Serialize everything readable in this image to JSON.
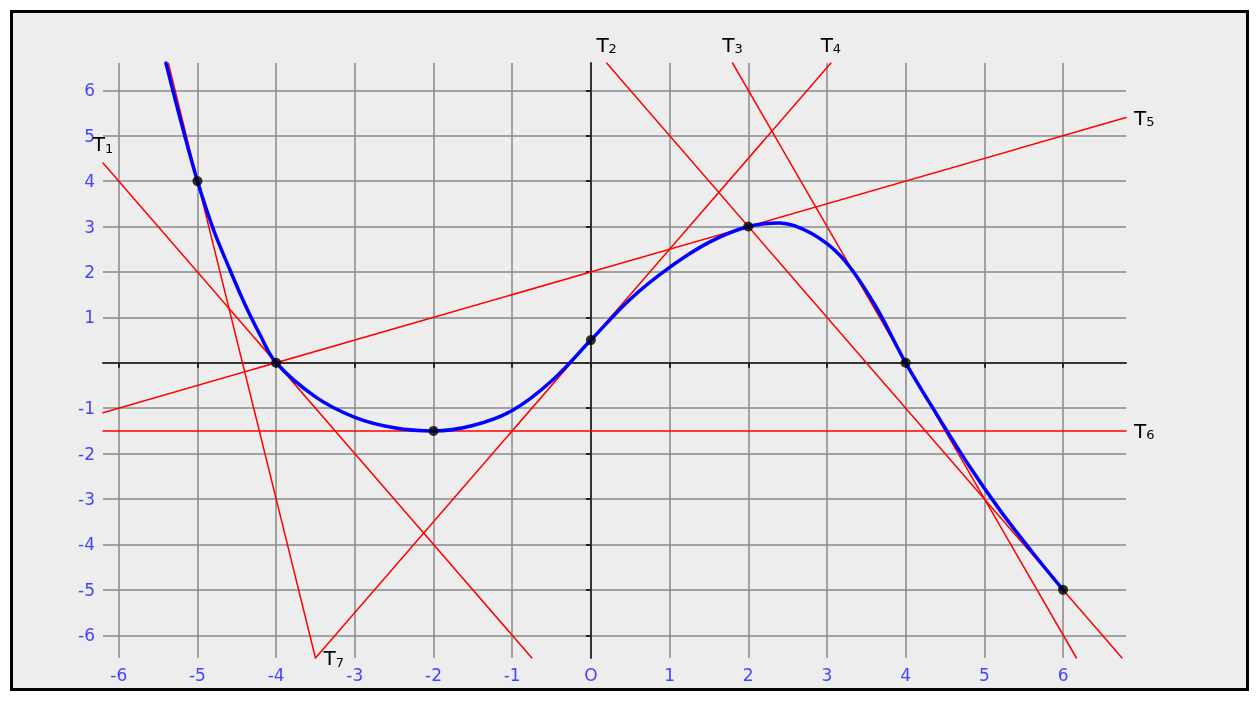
{
  "chart_data": {
    "type": "line",
    "xlim": [
      -6.2,
      6.8
    ],
    "ylim": [
      -6.5,
      6.6
    ],
    "xticks": [
      -6,
      -5,
      -4,
      -3,
      -2,
      -1,
      {
        "value": 0,
        "label": "O"
      },
      1,
      2,
      3,
      4,
      5,
      6
    ],
    "yticks": [
      -6,
      -5,
      -4,
      -3,
      -2,
      -1,
      1,
      2,
      3,
      4,
      5,
      6
    ],
    "grid": true,
    "legend": false,
    "marker": "none",
    "line_style": "solid",
    "series": [
      {
        "color": "#0000ff",
        "x": [
          -5.4,
          -5.2,
          -5,
          -4.8,
          -4.6,
          -4.4,
          -4.2,
          -4,
          -3.5,
          -3,
          -2.5,
          -2,
          -1.5,
          -1,
          -0.5,
          0,
          0.5,
          1,
          1.5,
          2,
          2.4,
          2.8,
          3.2,
          3.6,
          4,
          4.4,
          4.8,
          5.2,
          5.6,
          6
        ],
        "values": [
          6.6,
          5.25,
          4,
          2.95,
          2.1,
          1.3,
          0.6,
          0,
          -0.75,
          -1.2,
          -1.43,
          -1.5,
          -1.38,
          -1.05,
          -0.4,
          0.5,
          1.4,
          2.1,
          2.65,
          3,
          3.08,
          2.85,
          2.3,
          1.3,
          0,
          -1.15,
          -2.25,
          -3.25,
          -4.15,
          -5
        ]
      },
      {
        "type": "scatter",
        "marker": "circle",
        "color": "#000000",
        "x": [
          -5,
          -4,
          -2,
          0,
          2,
          4,
          6
        ],
        "values": [
          4,
          0,
          -1.5,
          0.5,
          3,
          0,
          -5
        ]
      },
      {
        "name": "T$_{1}$",
        "color": "#ff0000",
        "x": [
          -0.75,
          -6.2
        ],
        "values": [
          -6.5,
          4.4
        ]
      },
      {
        "name": "T$_{2}$",
        "color": "#ff0000",
        "x": [
          6.75,
          0.2
        ],
        "values": [
          -6.5,
          6.6
        ]
      },
      {
        "name": "T$_{3}$",
        "color": "#ff0000",
        "x": [
          6.17,
          1.8
        ],
        "values": [
          -6.5,
          6.6
        ]
      },
      {
        "name": "T$_{4}$",
        "color": "#ff0000",
        "x": [
          -3.5,
          3.05
        ],
        "values": [
          -6.5,
          6.6
        ]
      },
      {
        "name": "T$_{5}$",
        "color": "#ff0000",
        "x": [
          -6.2,
          6.8
        ],
        "values": [
          -1.1,
          5.4
        ]
      },
      {
        "name": "T$_{6}$",
        "color": "#ff0000",
        "x": [
          -6.2,
          6.8
        ],
        "values": [
          -1.5,
          -1.5
        ]
      },
      {
        "name": "T$_{7}$",
        "color": "#ff0000",
        "x": [
          -5.37,
          -3.5
        ],
        "values": [
          6.6,
          -6.5
        ]
      }
    ]
  }
}
